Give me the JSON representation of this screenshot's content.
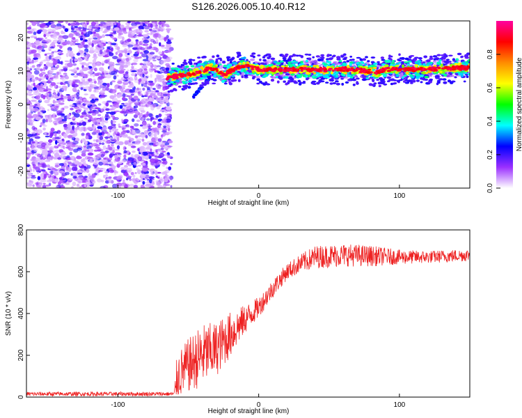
{
  "title": "S126.2026.005.10.40.R12",
  "colors": {
    "snr_line": "#ee2222",
    "axis": "#000000",
    "colormap": [
      "#ffffff",
      "#9b30ff",
      "#0000ff",
      "#00ffff",
      "#00ff00",
      "#ffff00",
      "#ff8c00",
      "#ff0000",
      "#ff00a0"
    ]
  },
  "chart_data": [
    {
      "type": "heatmap",
      "title": "S126.2026.005.10.40.R12",
      "xlabel": "Height of straight line (km)",
      "ylabel": "Frequency (Hz)",
      "xlim": [
        -165,
        150
      ],
      "ylim": [
        -25,
        25
      ],
      "xticks": [
        -100,
        0,
        100
      ],
      "yticks": [
        -20,
        -10,
        0,
        10,
        20
      ],
      "noise_region_x": [
        -165,
        -65
      ],
      "ridge": {
        "x": [
          -65,
          -58,
          -50,
          -45,
          -40,
          -35,
          -30,
          -25,
          -20,
          -15,
          -10,
          -5,
          0,
          20,
          40,
          60,
          80,
          85,
          90,
          100,
          120,
          140,
          150
        ],
        "freq": [
          8,
          8.5,
          9,
          9.5,
          10,
          11,
          10.5,
          9,
          10,
          11,
          11.5,
          11,
          10.5,
          10.5,
          10.5,
          10.5,
          10,
          9.5,
          10.5,
          10.5,
          10.5,
          11,
          11
        ]
      },
      "colorbar": {
        "label": "Normalized spectral amplitude",
        "range": [
          0,
          1
        ],
        "ticks": [
          "0.0",
          "0.2",
          "0.4",
          "0.6",
          "0.8"
        ]
      }
    },
    {
      "type": "line",
      "xlabel": "Height of straight line (km)",
      "ylabel": "SNR (10 * v/v)",
      "xlim": [
        -165,
        150
      ],
      "ylim": [
        0,
        800
      ],
      "xticks": [
        -100,
        0,
        100
      ],
      "yticks": [
        0,
        200,
        400,
        600,
        800
      ],
      "series": [
        {
          "name": "SNR",
          "envelope_x": [
            -165,
            -60,
            -58,
            -50,
            -40,
            -30,
            -20,
            -10,
            0,
            10,
            20,
            30,
            40,
            60,
            80,
            100,
            120,
            150
          ],
          "envelope_mean": [
            15,
            15,
            100,
            150,
            200,
            230,
            300,
            370,
            430,
            520,
            600,
            640,
            670,
            680,
            675,
            670,
            670,
            680
          ],
          "envelope_spread": [
            10,
            10,
            110,
            130,
            150,
            130,
            110,
            70,
            50,
            45,
            40,
            45,
            55,
            55,
            50,
            35,
            30,
            30
          ]
        }
      ]
    }
  ]
}
